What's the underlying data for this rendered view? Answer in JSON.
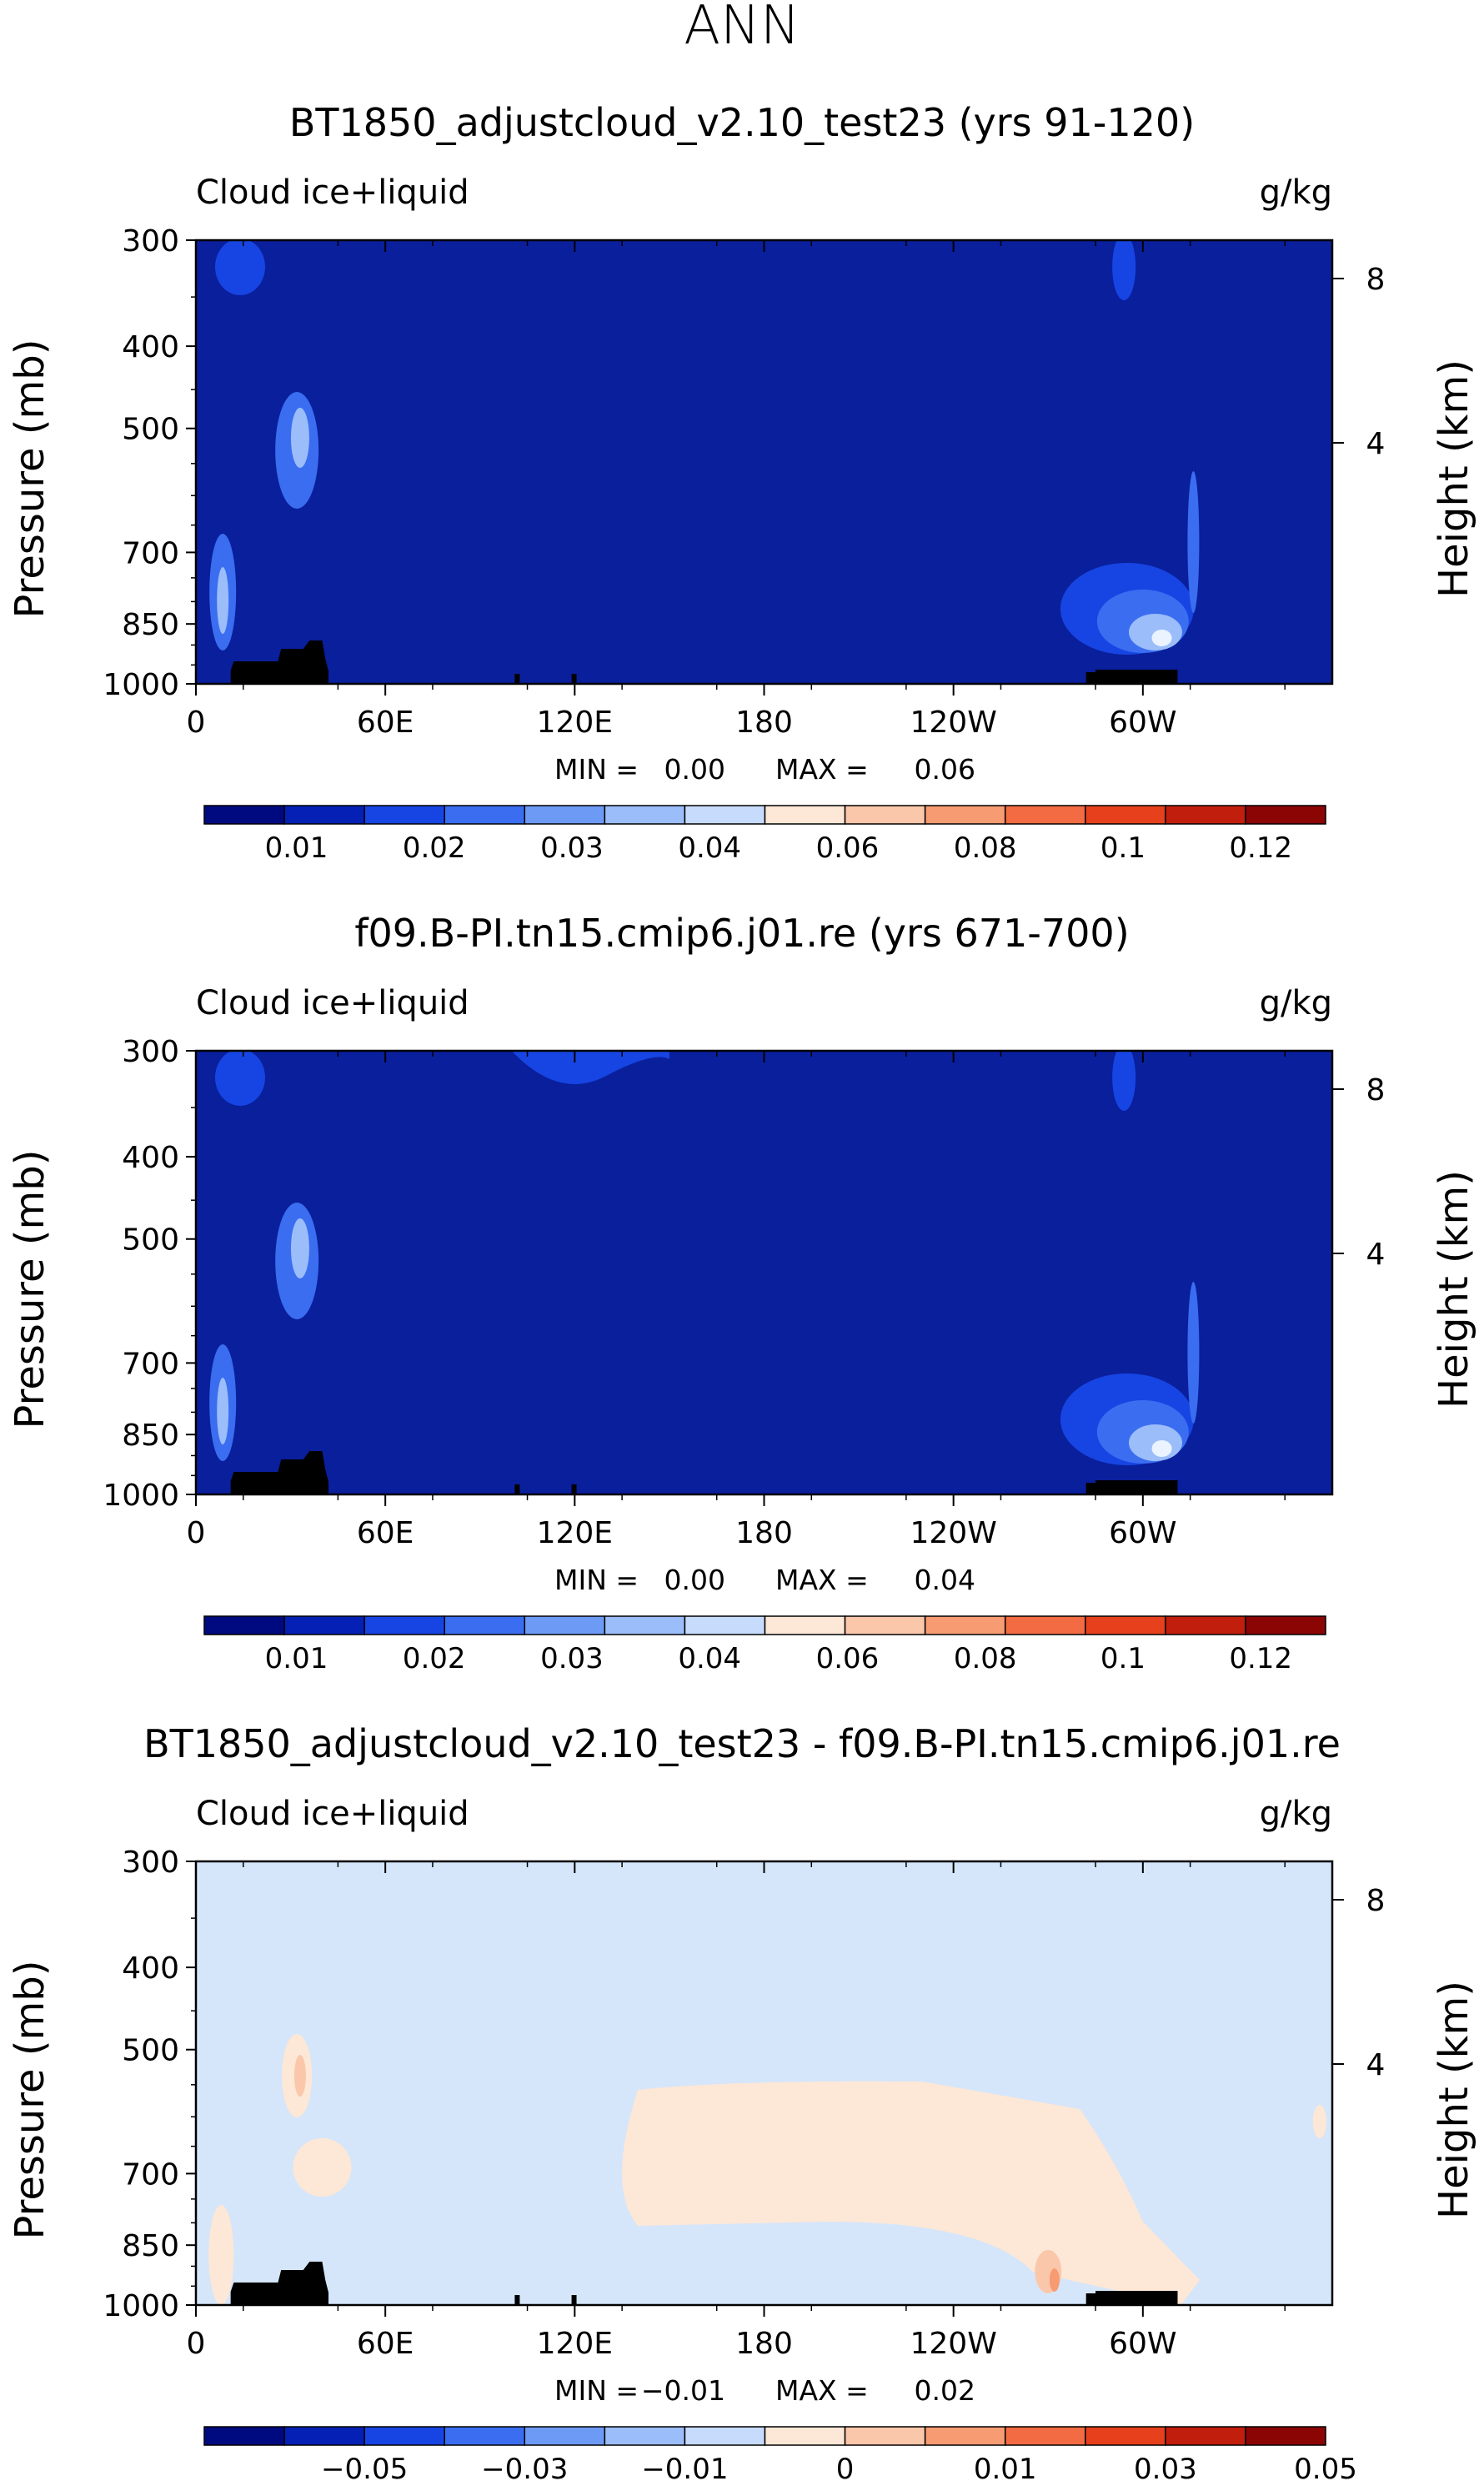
{
  "page_title": "ANN",
  "colors": {
    "plot_blue_bg": "#0a1f9c",
    "diff_bg": "#d6e6fa",
    "land": "#000000"
  },
  "chart_data": [
    {
      "type": "heatmap",
      "title": "BT1850_adjustcloud_v2.10_test23 (yrs 91-120)",
      "left_label": "Cloud ice+liquid",
      "right_label": "g/kg",
      "ylabel": "Pressure (mb)",
      "y2label": "Height (km)",
      "y_ticks": [
        "300",
        "400",
        "500",
        "700",
        "850",
        "1000"
      ],
      "y2_ticks": [
        "8",
        "4"
      ],
      "x_ticks": [
        "0",
        "60E",
        "120E",
        "180",
        "120W",
        "60W"
      ],
      "xlim": [
        0,
        360
      ],
      "ylim": [
        1000,
        300
      ],
      "min_label": "MIN =",
      "min_value": "0.00",
      "max_label": "MAX =",
      "max_value": "0.06",
      "colorbar_labels": [
        "0.01",
        "0.02",
        "0.03",
        "0.04",
        "0.06",
        "0.08",
        "0.1",
        "0.12"
      ]
    },
    {
      "type": "heatmap",
      "title": "f09.B-PI.tn15.cmip6.j01.re (yrs 671-700)",
      "left_label": "Cloud ice+liquid",
      "right_label": "g/kg",
      "ylabel": "Pressure (mb)",
      "y2label": "Height (km)",
      "y_ticks": [
        "300",
        "400",
        "500",
        "700",
        "850",
        "1000"
      ],
      "y2_ticks": [
        "8",
        "4"
      ],
      "x_ticks": [
        "0",
        "60E",
        "120E",
        "180",
        "120W",
        "60W"
      ],
      "xlim": [
        0,
        360
      ],
      "ylim": [
        1000,
        300
      ],
      "min_label": "MIN =",
      "min_value": "0.00",
      "max_label": "MAX =",
      "max_value": "0.04",
      "colorbar_labels": [
        "0.01",
        "0.02",
        "0.03",
        "0.04",
        "0.06",
        "0.08",
        "0.1",
        "0.12"
      ]
    },
    {
      "type": "heatmap",
      "title": "BT1850_adjustcloud_v2.10_test23 - f09.B-PI.tn15.cmip6.j01.re",
      "left_label": "Cloud ice+liquid",
      "right_label": "g/kg",
      "ylabel": "Pressure (mb)",
      "y2label": "Height (km)",
      "y_ticks": [
        "300",
        "400",
        "500",
        "700",
        "850",
        "1000"
      ],
      "y2_ticks": [
        "8",
        "4"
      ],
      "x_ticks": [
        "0",
        "60E",
        "120E",
        "180",
        "120W",
        "60W"
      ],
      "xlim": [
        0,
        360
      ],
      "ylim": [
        1000,
        300
      ],
      "min_label": "MIN =",
      "min_value": "−0.01",
      "max_label": "MAX =",
      "max_value": "0.02",
      "colorbar_labels": [
        "−0.05",
        "−0.03",
        "−0.01",
        "0",
        "0.01",
        "0.03",
        "0.05"
      ]
    }
  ],
  "colorbar_colors": [
    "#000a80",
    "#0521b5",
    "#1745e3",
    "#3a6df0",
    "#6d9af5",
    "#9bbdf9",
    "#c7dcfc",
    "#fde7d6",
    "#fbc7aa",
    "#f79b73",
    "#f26b43",
    "#e6411c",
    "#c21e0d",
    "#8c0505"
  ]
}
